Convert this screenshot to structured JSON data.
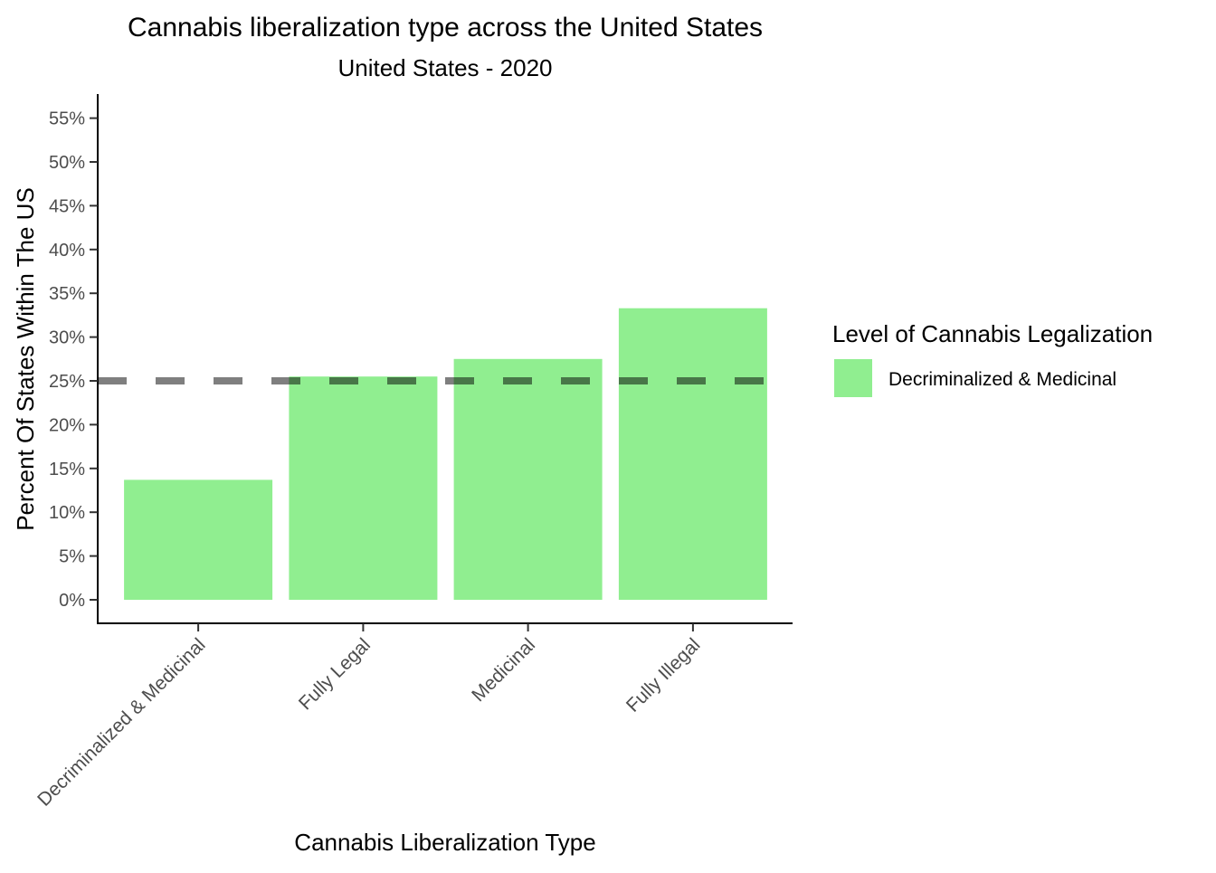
{
  "chart_data": {
    "type": "bar",
    "title": "Cannabis liberalization type across the United States",
    "subtitle": "United States - 2020",
    "xlabel": "Cannabis Liberalization Type",
    "ylabel": "Percent Of States Within The US",
    "categories": [
      "Decriminalized & Medicinal",
      "Fully Legal",
      "Medicinal",
      "Fully Illegal"
    ],
    "values": [
      13.7,
      25.5,
      27.5,
      33.3
    ],
    "ylim": [
      0,
      57.5
    ],
    "y_ticks": [
      0,
      5,
      10,
      15,
      20,
      25,
      30,
      35,
      40,
      45,
      50,
      55
    ],
    "y_tick_labels": [
      "0%",
      "5%",
      "10%",
      "15%",
      "20%",
      "25%",
      "30%",
      "35%",
      "40%",
      "45%",
      "50%",
      "55%"
    ],
    "reference_line": {
      "value": 25,
      "style": "dashed",
      "color": "#000000",
      "opacity": 0.5
    },
    "bar_color": "#90ee90",
    "grid": false,
    "legend": {
      "title": "Level of Cannabis Legalization",
      "position": "right",
      "entries": [
        {
          "label": "Decriminalized & Medicinal",
          "color": "#90ee90"
        }
      ]
    }
  }
}
